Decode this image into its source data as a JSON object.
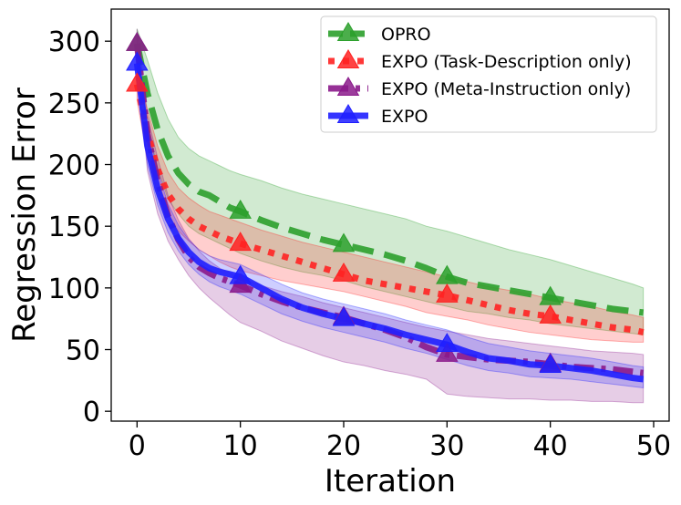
{
  "chart_data": {
    "type": "line",
    "title": "",
    "xlabel": "Iteration",
    "ylabel": "Regression Error",
    "xlim": [
      -2.5,
      51.5
    ],
    "ylim": [
      -8,
      326
    ],
    "xticks": [
      0,
      10,
      20,
      30,
      40,
      50
    ],
    "yticks": [
      0,
      50,
      100,
      150,
      200,
      250,
      300
    ],
    "tick_labels_x": [
      "0",
      "10",
      "20",
      "30",
      "40",
      "50"
    ],
    "tick_labels_y": [
      "0",
      "50",
      "100",
      "150",
      "200",
      "250",
      "300"
    ],
    "grid": false,
    "legend_position": "top-right",
    "x": [
      0,
      1,
      2,
      3,
      4,
      5,
      6,
      7,
      8,
      9,
      10,
      12,
      14,
      16,
      18,
      20,
      22,
      24,
      26,
      28,
      30,
      32,
      34,
      36,
      38,
      40,
      42,
      44,
      46,
      48,
      49
    ],
    "series": [
      {
        "name": "OPRO",
        "color": "#2ca02c",
        "line_style": "dashed",
        "marker_every": 10,
        "values": [
          298,
          258,
          228,
          207,
          193,
          184,
          178,
          175,
          170,
          165,
          162,
          155,
          149,
          144,
          139,
          135,
          131,
          127,
          122,
          116,
          109,
          104,
          101,
          98,
          95,
          92,
          89,
          86,
          83,
          81,
          80
        ],
        "lower": [
          285,
          230,
          197,
          172,
          160,
          150,
          144,
          140,
          136,
          132,
          128,
          122,
          117,
          113,
          110,
          106,
          101,
          97,
          93,
          89,
          85,
          81,
          79,
          76,
          74,
          71,
          69,
          67,
          65,
          63,
          62
        ],
        "upper": [
          310,
          285,
          258,
          237,
          222,
          213,
          207,
          203,
          199,
          195,
          192,
          187,
          181,
          176,
          172,
          168,
          164,
          160,
          156,
          150,
          146,
          141,
          136,
          131,
          127,
          123,
          118,
          113,
          108,
          103,
          100
        ]
      },
      {
        "name": "EXPO (Task-Description only)",
        "color": "#ff2222",
        "line_style": "dotted",
        "marker_every": 10,
        "values": [
          265,
          226,
          196,
          176,
          164,
          156,
          150,
          146,
          142,
          139,
          136,
          131,
          126,
          121,
          116,
          111,
          106,
          103,
          100,
          97,
          94,
          90,
          86,
          82,
          79,
          77,
          74,
          71,
          68,
          66,
          64
        ],
        "lower": [
          252,
          205,
          177,
          158,
          146,
          138,
          131,
          126,
          121,
          117,
          114,
          110,
          106,
          103,
          100,
          97,
          93,
          89,
          85,
          80,
          77,
          74,
          70,
          67,
          64,
          62,
          60,
          58,
          57,
          56,
          56
        ],
        "upper": [
          278,
          245,
          215,
          194,
          181,
          173,
          167,
          162,
          159,
          156,
          153,
          147,
          142,
          137,
          133,
          129,
          125,
          121,
          117,
          113,
          109,
          105,
          101,
          98,
          95,
          91,
          88,
          85,
          81,
          78,
          76
        ]
      },
      {
        "name": "EXPO (Meta-Instruction only)",
        "color": "#8b1a8b",
        "line_style": "dashdot",
        "marker_every": 10,
        "values": [
          298,
          225,
          186,
          158,
          139,
          125,
          117,
          112,
          108,
          105,
          102,
          95,
          89,
          84,
          80,
          76,
          71,
          66,
          60,
          52,
          46,
          44,
          42,
          41,
          40,
          38,
          36,
          35,
          34,
          32,
          31
        ],
        "lower": [
          285,
          195,
          160,
          138,
          123,
          110,
          100,
          92,
          85,
          78,
          72,
          65,
          57,
          51,
          45,
          40,
          37,
          33,
          30,
          26,
          14,
          12,
          11,
          10,
          10,
          9,
          9,
          8,
          8,
          7,
          7
        ],
        "upper": [
          310,
          240,
          205,
          175,
          155,
          140,
          130,
          122,
          116,
          112,
          108,
          102,
          97,
          93,
          88,
          84,
          80,
          76,
          72,
          68,
          65,
          62,
          59,
          57,
          55,
          53,
          51,
          49,
          48,
          47,
          46
        ]
      },
      {
        "name": "EXPO",
        "color": "#1f1fff",
        "line_style": "solid",
        "marker_every": 10,
        "values": [
          282,
          215,
          180,
          156,
          140,
          129,
          121,
          116,
          113,
          111,
          109,
          100,
          91,
          84,
          79,
          75,
          71,
          67,
          62,
          58,
          54,
          48,
          43,
          41,
          38,
          37,
          35,
          33,
          30,
          27,
          26
        ],
        "lower": [
          270,
          200,
          167,
          145,
          130,
          119,
          111,
          105,
          101,
          98,
          95,
          87,
          79,
          73,
          68,
          64,
          60,
          56,
          51,
          47,
          42,
          37,
          33,
          31,
          28,
          27,
          26,
          24,
          22,
          20,
          19
        ],
        "upper": [
          295,
          230,
          195,
          168,
          151,
          139,
          131,
          126,
          123,
          121,
          119,
          111,
          103,
          96,
          91,
          87,
          83,
          79,
          74,
          70,
          66,
          60,
          55,
          52,
          49,
          47,
          45,
          43,
          40,
          37,
          36
        ]
      }
    ]
  }
}
